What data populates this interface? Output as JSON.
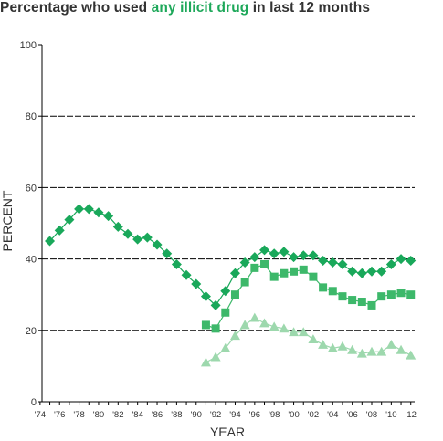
{
  "title": {
    "prefix": "Percentage who used ",
    "highlight": "any illicit drug",
    "suffix": " in last 12 months"
  },
  "colors": {
    "title_text": "#333333",
    "highlight": "#1ea85a",
    "grid": "#000000"
  },
  "chart_data": {
    "type": "line",
    "title": "Percentage who used any illicit drug in last 12 months",
    "xlabel": "YEAR",
    "ylabel": "PERCENT",
    "xlim": [
      1974,
      2012
    ],
    "ylim": [
      0,
      100
    ],
    "y_ticks": [
      0,
      20,
      40,
      60,
      80,
      100
    ],
    "x_ticks": [
      {
        "year": 1974,
        "label": "'74"
      },
      {
        "year": 1976,
        "label": "'76"
      },
      {
        "year": 1978,
        "label": "'78"
      },
      {
        "year": 1980,
        "label": "'80"
      },
      {
        "year": 1982,
        "label": "'82"
      },
      {
        "year": 1984,
        "label": "'84"
      },
      {
        "year": 1986,
        "label": "'86"
      },
      {
        "year": 1988,
        "label": "'88"
      },
      {
        "year": 1990,
        "label": "'90"
      },
      {
        "year": 1992,
        "label": "'92"
      },
      {
        "year": 1994,
        "label": "'94"
      },
      {
        "year": 1996,
        "label": "'96"
      },
      {
        "year": 1998,
        "label": "'98"
      },
      {
        "year": 2000,
        "label": "'00"
      },
      {
        "year": 2002,
        "label": "'02"
      },
      {
        "year": 2004,
        "label": "'04"
      },
      {
        "year": 2006,
        "label": "'06"
      },
      {
        "year": 2008,
        "label": "'08"
      },
      {
        "year": 2010,
        "label": "'10"
      },
      {
        "year": 2012,
        "label": "'12"
      }
    ],
    "grid": "dashed horizontal at 20, 40, 60, 80",
    "series": [
      {
        "marker": "diamond",
        "color": "#19a85a",
        "x": [
          1975,
          1976,
          1977,
          1978,
          1979,
          1980,
          1981,
          1982,
          1983,
          1984,
          1985,
          1986,
          1987,
          1988,
          1989,
          1990,
          1991,
          1992,
          1993,
          1994,
          1995,
          1996,
          1997,
          1998,
          1999,
          2000,
          2001,
          2002,
          2003,
          2004,
          2005,
          2006,
          2007,
          2008,
          2009,
          2010,
          2011,
          2012
        ],
        "y": [
          45,
          48,
          51,
          54,
          54,
          53,
          52,
          49,
          47,
          45.5,
          46,
          44,
          41.5,
          38.5,
          35.5,
          33,
          29.5,
          27,
          31,
          36,
          39,
          40.5,
          42.5,
          41.5,
          42,
          40.5,
          41,
          41,
          39.5,
          39,
          38.5,
          36.5,
          36,
          36.5,
          36.5,
          38.5,
          40,
          39.5
        ]
      },
      {
        "marker": "square",
        "color": "#3db86a",
        "x": [
          1991,
          1992,
          1993,
          1994,
          1995,
          1996,
          1997,
          1998,
          1999,
          2000,
          2001,
          2002,
          2003,
          2004,
          2005,
          2006,
          2007,
          2008,
          2009,
          2010,
          2011,
          2012
        ],
        "y": [
          21.5,
          20.5,
          25,
          30,
          33.5,
          37.5,
          38.5,
          35,
          36,
          36.5,
          37,
          35,
          32,
          31,
          29.5,
          28.5,
          28,
          27,
          29.5,
          30,
          30.5,
          30
        ]
      },
      {
        "marker": "triangle",
        "color": "#9dd8ad",
        "x": [
          1991,
          1992,
          1993,
          1994,
          1995,
          1996,
          1997,
          1998,
          1999,
          2000,
          2001,
          2002,
          2003,
          2004,
          2005,
          2006,
          2007,
          2008,
          2009,
          2010,
          2011,
          2012
        ],
        "y": [
          11,
          12.5,
          15,
          18.5,
          21.5,
          23.5,
          22,
          21,
          20.5,
          19.5,
          19.5,
          17.5,
          16,
          15,
          15.5,
          14.5,
          13.5,
          14,
          14,
          16,
          14.5,
          13
        ]
      }
    ]
  }
}
